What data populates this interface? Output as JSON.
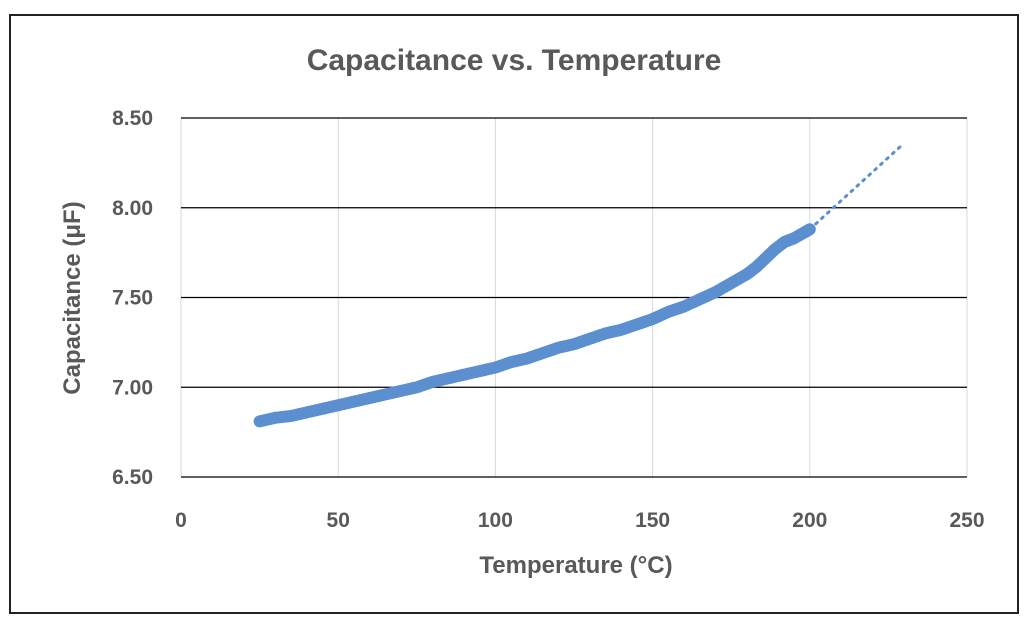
{
  "chart_data": {
    "type": "scatter",
    "title": "Capacitance vs. Temperature",
    "xlabel": "Temperature (°C)",
    "ylabel": "Capacitance (μF)",
    "xlim": [
      0,
      250
    ],
    "ylim": [
      6.5,
      8.5
    ],
    "x_ticks": [
      "0",
      "50",
      "100",
      "150",
      "200",
      "250"
    ],
    "y_ticks": [
      "6.50",
      "7.00",
      "7.50",
      "8.00",
      "8.50"
    ],
    "gridlines": "on",
    "legend": "none",
    "marker_color": "#5b8fd0",
    "series": [
      {
        "x": [
          25,
          30,
          35,
          40,
          45,
          50,
          55,
          60,
          65,
          70,
          75,
          80,
          85,
          90,
          95,
          100,
          105,
          110,
          115,
          120,
          125,
          130,
          135,
          140,
          145,
          150,
          155,
          160,
          165,
          170,
          175,
          180,
          183,
          186,
          189,
          192,
          195,
          198,
          200
        ],
        "y": [
          6.81,
          6.83,
          6.84,
          6.86,
          6.88,
          6.9,
          6.92,
          6.94,
          6.96,
          6.98,
          7.0,
          7.03,
          7.05,
          7.07,
          7.09,
          7.11,
          7.14,
          7.16,
          7.19,
          7.22,
          7.24,
          7.27,
          7.3,
          7.32,
          7.35,
          7.38,
          7.42,
          7.45,
          7.49,
          7.53,
          7.58,
          7.63,
          7.67,
          7.72,
          7.77,
          7.81,
          7.83,
          7.86,
          7.88
        ]
      }
    ],
    "trendline": {
      "style": "dotted",
      "x": [
        200,
        205,
        210,
        215,
        220,
        225,
        230
      ],
      "y": [
        7.88,
        7.96,
        8.04,
        8.12,
        8.2,
        8.28,
        8.36
      ]
    }
  }
}
